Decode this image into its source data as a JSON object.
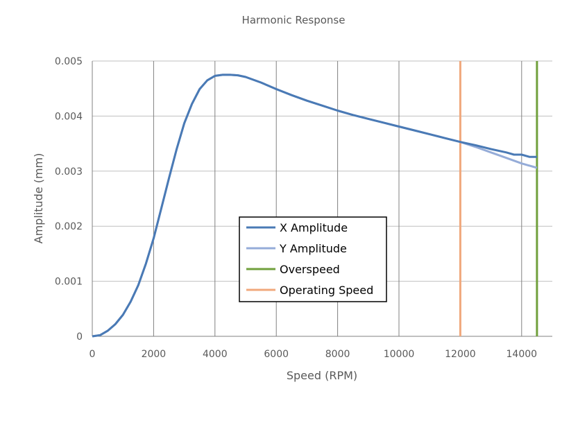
{
  "chart_data": {
    "type": "line",
    "title": "Harmonic Response",
    "xlabel": "Speed (RPM)",
    "ylabel": "Amplitude (mm)",
    "xlim": [
      0,
      15000
    ],
    "ylim": [
      0,
      0.005
    ],
    "x_ticks": [
      0,
      2000,
      4000,
      6000,
      8000,
      10000,
      12000,
      14000
    ],
    "x_tick_labels": [
      "0",
      "2000",
      "4000",
      "6000",
      "8000",
      "10000",
      "12000",
      "14000"
    ],
    "y_ticks": [
      0,
      0.001,
      0.002,
      0.003,
      0.004,
      0.005
    ],
    "y_tick_labels": [
      "0",
      "0.001",
      "0.002",
      "0.003",
      "0.004",
      "0.005"
    ],
    "grid": true,
    "legend_position": "center",
    "series": [
      {
        "name": "X Amplitude",
        "color": "#4a7ab5",
        "x": [
          0,
          250,
          500,
          750,
          1000,
          1250,
          1500,
          1750,
          2000,
          2250,
          2500,
          2750,
          3000,
          3250,
          3500,
          3750,
          4000,
          4250,
          4500,
          4750,
          5000,
          5500,
          6000,
          6500,
          7000,
          7500,
          8000,
          8500,
          9000,
          9500,
          10000,
          10500,
          11000,
          11500,
          12000,
          12500,
          13000,
          13500,
          13750,
          14000,
          14250,
          14500
        ],
        "y": [
          0,
          2e-05,
          0.0001,
          0.00022,
          0.00039,
          0.00063,
          0.00093,
          0.00132,
          0.00178,
          0.00232,
          0.00287,
          0.0034,
          0.00387,
          0.00422,
          0.00449,
          0.00465,
          0.00473,
          0.00475,
          0.00475,
          0.00474,
          0.00471,
          0.00461,
          0.00449,
          0.00438,
          0.00428,
          0.00419,
          0.0041,
          0.00402,
          0.00395,
          0.00388,
          0.00381,
          0.00374,
          0.00367,
          0.0036,
          0.00353,
          0.00347,
          0.0034,
          0.00334,
          0.0033,
          0.0033,
          0.00326,
          0.00326
        ]
      },
      {
        "name": "Y Amplitude",
        "color": "#95acd8",
        "x": [
          0,
          250,
          500,
          750,
          1000,
          1250,
          1500,
          1750,
          2000,
          2250,
          2500,
          2750,
          3000,
          3250,
          3500,
          3750,
          4000,
          4250,
          4500,
          4750,
          5000,
          5500,
          6000,
          6500,
          7000,
          7500,
          8000,
          8500,
          9000,
          9500,
          10000,
          10500,
          11000,
          11500,
          12000,
          12500,
          13000,
          13500,
          14000,
          14500
        ],
        "y": [
          0,
          2e-05,
          0.0001,
          0.00022,
          0.00039,
          0.00063,
          0.00093,
          0.00132,
          0.00178,
          0.00232,
          0.00287,
          0.0034,
          0.00387,
          0.00422,
          0.00449,
          0.00465,
          0.00473,
          0.00475,
          0.00475,
          0.00474,
          0.00471,
          0.00461,
          0.00449,
          0.00438,
          0.00428,
          0.00419,
          0.0041,
          0.00402,
          0.00395,
          0.00388,
          0.00381,
          0.00374,
          0.00367,
          0.0036,
          0.00353,
          0.00344,
          0.00334,
          0.00324,
          0.00314,
          0.00306
        ]
      },
      {
        "name": "Overspeed",
        "color": "#70a03c",
        "x": [
          14500,
          14500
        ],
        "y": [
          0,
          0.005
        ]
      },
      {
        "name": "Operating Speed",
        "color": "#f0a87c",
        "x": [
          12000,
          12000
        ],
        "y": [
          0,
          0.005
        ]
      }
    ]
  }
}
